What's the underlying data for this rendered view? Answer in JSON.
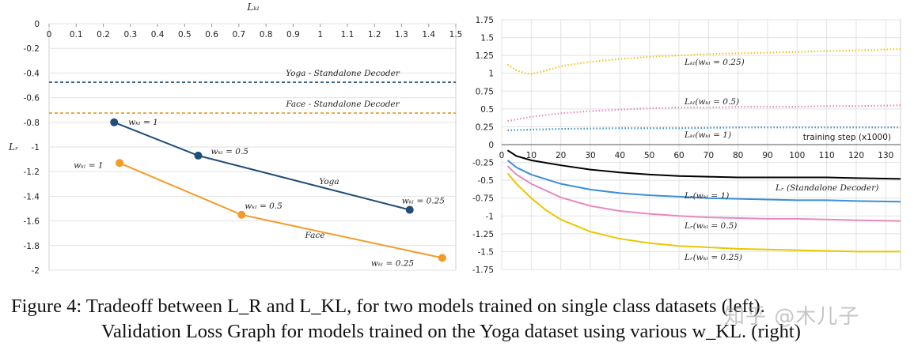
{
  "chart_data": [
    {
      "type": "scatter",
      "title": "",
      "xlabel": "L_KL",
      "ylabel": "L_R",
      "xlim": [
        0,
        1.5
      ],
      "ylim": [
        -2,
        0
      ],
      "xticks": [
        0,
        0.1,
        0.2,
        0.3,
        0.4,
        0.5,
        0.6,
        0.7,
        0.8,
        0.9,
        1,
        1.1,
        1.2,
        1.3,
        1.4,
        1.5
      ],
      "xtick_labels": [
        "0",
        "0.1",
        "0.2",
        "0.3",
        "0.4",
        "0.5",
        "0.6",
        "0.7",
        "0.8",
        "0.9",
        "1",
        "1.1",
        "1.2",
        "1.3",
        "1.4",
        "1.5"
      ],
      "yticks": [
        0,
        -0.2,
        -0.4,
        -0.6,
        -0.8,
        -1,
        -1.2,
        -1.4,
        -1.6,
        -1.8,
        -2
      ],
      "ytick_labels": [
        "0",
        "-0.2",
        "-0.4",
        "-0.6",
        "-0.8",
        "-1",
        "-1.2",
        "-1.4",
        "-1.6",
        "-1.8",
        "-2"
      ],
      "hlines": [
        {
          "name": "Yoga - Standalone Decoder",
          "y": -0.475,
          "color": "#1f4e79"
        },
        {
          "name": "Face - Standalone Decoder",
          "y": -0.725,
          "color": "#e8962a"
        }
      ],
      "series": [
        {
          "name": "Yoga",
          "color": "#1f4e79",
          "points": [
            {
              "x": 0.24,
              "y": -0.8,
              "label": "w_KL = 1"
            },
            {
              "x": 0.55,
              "y": -1.07,
              "label": "w_KL = 0.5"
            },
            {
              "x": 1.33,
              "y": -1.51,
              "label": "w_KL = 0.25"
            }
          ]
        },
        {
          "name": "Face",
          "color": "#f29b2b",
          "points": [
            {
              "x": 0.26,
              "y": -1.13,
              "label": "w_KL = 1"
            },
            {
              "x": 0.71,
              "y": -1.55,
              "label": "w_KL = 0.5"
            },
            {
              "x": 1.45,
              "y": -1.9,
              "label": "w_KL = 0.25"
            }
          ]
        }
      ]
    },
    {
      "type": "line",
      "title": "",
      "xlabel": "training step (x1000)",
      "ylabel": "",
      "xlim": [
        0,
        135
      ],
      "ylim": [
        -1.75,
        1.75
      ],
      "xticks": [
        0,
        10,
        20,
        30,
        40,
        50,
        60,
        70,
        80,
        90,
        100,
        110,
        120,
        130
      ],
      "xtick_labels": [
        "0",
        "10",
        "20",
        "30",
        "40",
        "50",
        "60",
        "70",
        "80",
        "90",
        "100",
        "110",
        "120",
        "130"
      ],
      "yticks": [
        1.75,
        1.5,
        1.25,
        1,
        0.75,
        0.5,
        0.25,
        0,
        -0.25,
        -0.5,
        -0.75,
        -1,
        -1.25,
        -1.5,
        -1.75
      ],
      "ytick_labels": [
        "1.75",
        "1.5",
        "1.25",
        "1",
        "0.75",
        "0.5",
        "0.25",
        "0",
        "-0.25",
        "-0.5",
        "-0.75",
        "-1",
        "-1.25",
        "-1.5",
        "-1.75"
      ],
      "series": [
        {
          "name": "L_KL(w_KL = 0.25)",
          "color": "#f0c419",
          "style": "dotted",
          "x": [
            2,
            5,
            8,
            10,
            15,
            20,
            30,
            40,
            50,
            60,
            70,
            80,
            90,
            100,
            110,
            120,
            135
          ],
          "y": [
            1.12,
            1.04,
            1.0,
            0.99,
            1.04,
            1.1,
            1.16,
            1.2,
            1.23,
            1.25,
            1.27,
            1.28,
            1.29,
            1.3,
            1.31,
            1.32,
            1.34
          ]
        },
        {
          "name": "L_KL(w_KL = 0.5)",
          "color": "#e88ac4",
          "style": "dotted",
          "x": [
            2,
            10,
            20,
            30,
            40,
            50,
            60,
            70,
            80,
            90,
            100,
            110,
            120,
            135
          ],
          "y": [
            0.33,
            0.39,
            0.44,
            0.47,
            0.49,
            0.51,
            0.52,
            0.52,
            0.53,
            0.53,
            0.53,
            0.54,
            0.54,
            0.55
          ]
        },
        {
          "name": "L_KL(w_KL = 1)",
          "color": "#3a8fd8",
          "style": "dotted",
          "x": [
            2,
            10,
            20,
            40,
            60,
            80,
            100,
            120,
            135
          ],
          "y": [
            0.2,
            0.21,
            0.22,
            0.23,
            0.23,
            0.24,
            0.24,
            0.24,
            0.24
          ]
        },
        {
          "name": "L_R (Standalone Decoder)",
          "color": "#000000",
          "style": "solid",
          "x": [
            2,
            5,
            10,
            20,
            30,
            40,
            50,
            60,
            70,
            80,
            90,
            100,
            110,
            120,
            135
          ],
          "y": [
            -0.08,
            -0.16,
            -0.22,
            -0.29,
            -0.35,
            -0.39,
            -0.42,
            -0.44,
            -0.45,
            -0.46,
            -0.46,
            -0.46,
            -0.46,
            -0.47,
            -0.48
          ]
        },
        {
          "name": "L_R(w_KL = 1)",
          "color": "#3a8fd8",
          "style": "solid",
          "x": [
            2,
            5,
            10,
            20,
            30,
            40,
            50,
            60,
            70,
            80,
            90,
            100,
            110,
            120,
            135
          ],
          "y": [
            -0.22,
            -0.32,
            -0.42,
            -0.55,
            -0.63,
            -0.68,
            -0.71,
            -0.73,
            -0.75,
            -0.76,
            -0.77,
            -0.78,
            -0.78,
            -0.79,
            -0.8
          ]
        },
        {
          "name": "L_R(w_KL = 0.5)",
          "color": "#e888c0",
          "style": "solid",
          "x": [
            2,
            5,
            10,
            20,
            30,
            40,
            50,
            60,
            70,
            80,
            90,
            100,
            110,
            120,
            135
          ],
          "y": [
            -0.3,
            -0.42,
            -0.55,
            -0.74,
            -0.86,
            -0.93,
            -0.97,
            -1.0,
            -1.02,
            -1.03,
            -1.04,
            -1.04,
            -1.05,
            -1.06,
            -1.07
          ]
        },
        {
          "name": "L_R(w_KL = 0.25)",
          "color": "#e8c800",
          "style": "solid",
          "x": [
            2,
            5,
            10,
            15,
            20,
            30,
            40,
            50,
            60,
            70,
            80,
            90,
            100,
            110,
            120,
            135
          ],
          "y": [
            -0.4,
            -0.55,
            -0.75,
            -0.92,
            -1.05,
            -1.22,
            -1.32,
            -1.38,
            -1.42,
            -1.44,
            -1.46,
            -1.47,
            -1.48,
            -1.49,
            -1.5,
            -1.5
          ]
        }
      ]
    }
  ],
  "caption": {
    "line1": "Figure 4: Tradeoff between L_R and L_KL, for two models trained on single class datasets (left).",
    "line2": "Validation Loss Graph for models trained on the Yoga dataset using various w_KL. (right)"
  },
  "watermark": "知乎 @木儿子"
}
